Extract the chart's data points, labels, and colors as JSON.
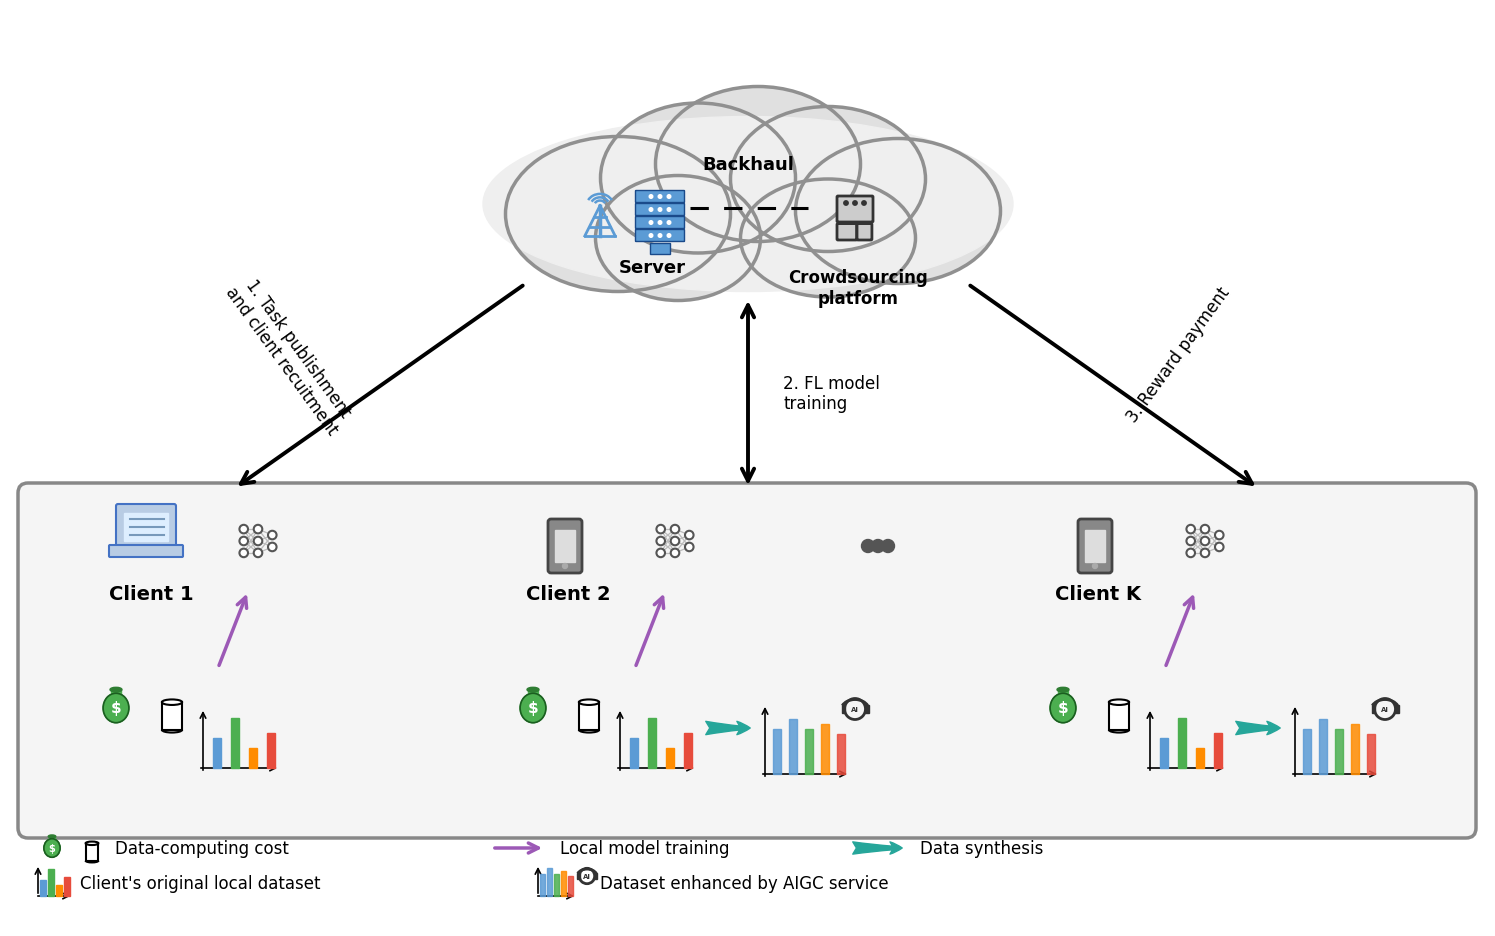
{
  "bg_color": "#ffffff",
  "teal_color": "#26A69A",
  "purple_color": "#9C59B6",
  "blue_color": "#5B9BD5",
  "bar_colors_orig": [
    "#5B9BD5",
    "#4CAF50",
    "#FF8C00",
    "#E74C3C"
  ],
  "bar_colors_enhanced": [
    "#5B9BD5",
    "#5B9BD5",
    "#4CAF50",
    "#FF8C00",
    "#E74C3C"
  ],
  "label_server": "Server",
  "label_crowdsourcing": "Crowdsourcing\nplatform",
  "label_backhaul": "Backhaul",
  "label_task": "1. Task publishment\nand client recuitment",
  "label_fl": "2. FL model\ntraining",
  "label_reward": "3. Reward payment",
  "label_client1": "Client 1",
  "label_client2": "Client 2",
  "label_clientk": "Client K",
  "legend_cost": "Data-computing cost",
  "legend_local": "Local model training",
  "legend_synthesis": "Data synthesis",
  "legend_orig": "Client's original local dataset",
  "legend_enhanced": "Dataset enhanced by AIGC service"
}
